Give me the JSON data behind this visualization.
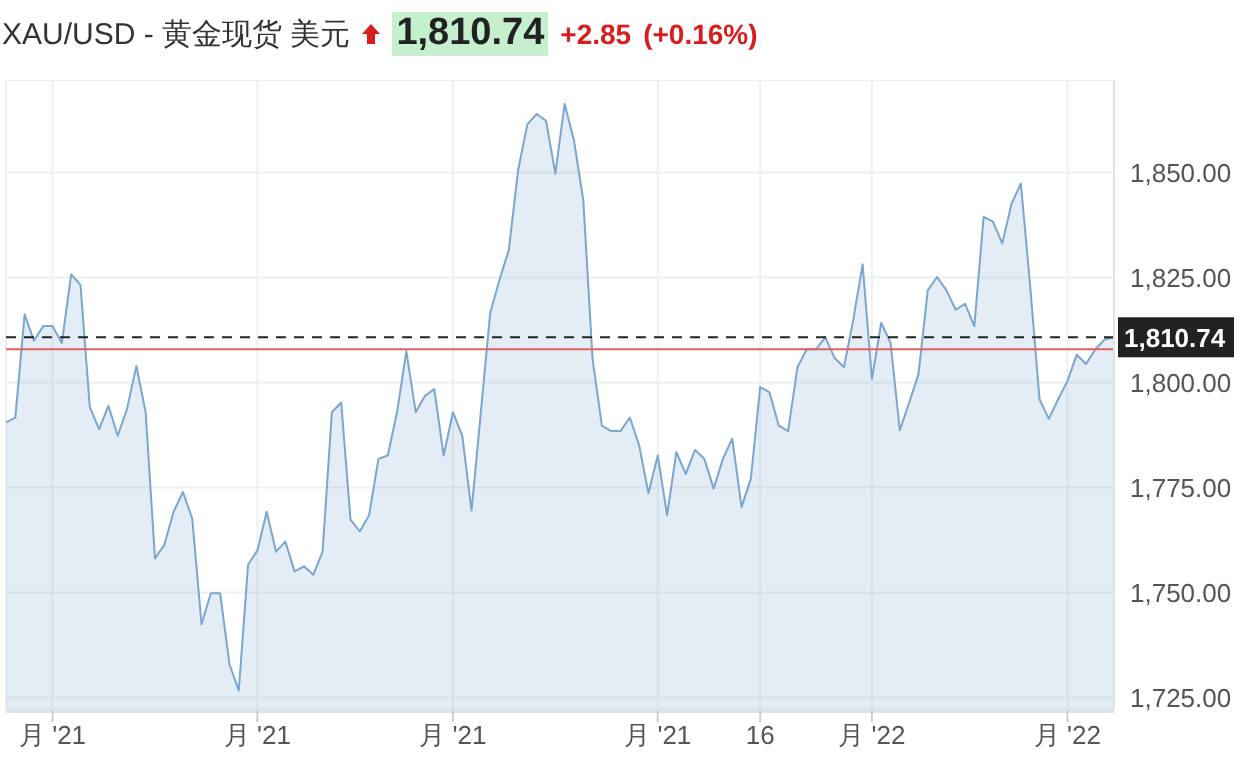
{
  "chart_data": {
    "type": "area",
    "title": "XAU/USD - 黄金现货 美元",
    "annotations": [
      "1,810.74",
      "+2.85",
      "(+0.16%)"
    ],
    "categories": [
      null,
      null,
      null,
      null,
      null,
      "月 '21",
      null,
      null,
      null,
      null,
      null,
      null,
      null,
      null,
      null,
      null,
      null,
      null,
      null,
      null,
      null,
      null,
      null,
      null,
      null,
      null,
      null,
      "月 '21",
      null,
      null,
      null,
      null,
      null,
      null,
      null,
      null,
      null,
      null,
      null,
      null,
      null,
      null,
      null,
      null,
      null,
      null,
      null,
      null,
      "月 '21",
      null,
      null,
      null,
      null,
      null,
      null,
      null,
      null,
      null,
      null,
      null,
      null,
      null,
      null,
      null,
      null,
      null,
      null,
      null,
      null,
      null,
      "月 '21",
      null,
      null,
      null,
      null,
      null,
      null,
      null,
      null,
      null,
      null,
      "16",
      null,
      null,
      null,
      null,
      null,
      null,
      null,
      null,
      null,
      null,
      null,
      "月 '22",
      null,
      null,
      null,
      null,
      null,
      null,
      null,
      null,
      null,
      null,
      null,
      null,
      null,
      null,
      null,
      null,
      null,
      null,
      null,
      null,
      "月 '22",
      null,
      null,
      null,
      null,
      null
    ],
    "series": [
      {
        "color": "#7aa6d0",
        "values": [
          1790.5,
          1791.6,
          1816.2,
          1809.9,
          1813.4,
          1813.4,
          1809.4,
          1825.7,
          1823.2,
          1794.1,
          1788.9,
          1794.4,
          1787.3,
          1793.7,
          1803.9,
          1792.9,
          1758.1,
          1761.3,
          1769.2,
          1773.9,
          1767.6,
          1742.4,
          1749.8,
          1749.8,
          1732.9,
          1726.6,
          1756.6,
          1760,
          1769.2,
          1759.7,
          1762.1,
          1755,
          1756.2,
          1754.2,
          1759.7,
          1792.9,
          1795.2,
          1767.3,
          1764.5,
          1768.4,
          1781.8,
          1782.6,
          1792.9,
          1807.4,
          1792.9,
          1796.8,
          1798.4,
          1782.6,
          1792.9,
          1787.3,
          1769.5,
          1792.9,
          1816.5,
          1824.4,
          1831.5,
          1850.5,
          1861.5,
          1863.9,
          1862.3,
          1849.7,
          1866.3,
          1857.6,
          1843.4,
          1805.5,
          1789.7,
          1788.4,
          1788.4,
          1791.6,
          1785,
          1773.6,
          1782.6,
          1768.4,
          1783.4,
          1778.2,
          1783.9,
          1781.8,
          1774.7,
          1781.8,
          1786.6,
          1770.3,
          1777.1,
          1798.9,
          1797.6,
          1789.7,
          1788.4,
          1803.6,
          1807.9,
          1807.9,
          1810.7,
          1805.8,
          1803.6,
          1815,
          1828.1,
          1800.8,
          1814.2,
          1809.4,
          1788.6,
          1795.2,
          1801.9,
          1821.9,
          1825.1,
          1821.9,
          1817.3,
          1818.7,
          1813.4,
          1839.4,
          1838.3,
          1833.1,
          1842.6,
          1847.3,
          1822.9,
          1796,
          1791.3,
          1796,
          1800.3,
          1806.6,
          1804.4,
          1807.9,
          1810.2,
          1810.7
        ]
      }
    ],
    "ylim": [
      1722,
      1872
    ],
    "yticks": [
      {
        "value": 1725,
        "label": "1,725.00"
      },
      {
        "value": 1750,
        "label": "1,750.00"
      },
      {
        "value": 1775,
        "label": "1,775.00"
      },
      {
        "value": 1800,
        "label": "1,800.00"
      },
      {
        "value": 1825,
        "label": "1,825.00"
      },
      {
        "value": 1850,
        "label": "1,850.00"
      }
    ],
    "ref_lines": [
      {
        "axis": "y",
        "value": 1810.74,
        "label": "1,810.74",
        "color": "#222222",
        "line_style": "dashed"
      },
      {
        "axis": "y",
        "value": 1807.89,
        "color": "#e06060",
        "line_style": "solid"
      }
    ],
    "grid": true,
    "legend": false,
    "marker": "none"
  }
}
